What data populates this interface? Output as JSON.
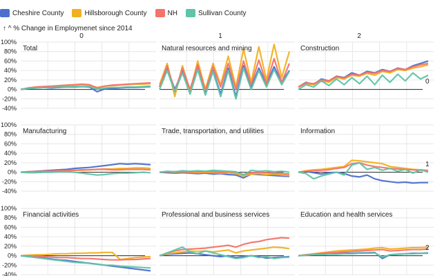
{
  "legend": [
    {
      "name": "Cheshire County",
      "color": "#4c6fcf"
    },
    {
      "name": "Hillsborough County",
      "color": "#f2b01e"
    },
    {
      "name": "NH",
      "color": "#f4736a"
    },
    {
      "name": "Sullivan County",
      "color": "#5fc4a8"
    }
  ],
  "ytitle": "↑ ^ % Change in Employmenet since 2014",
  "chart_data": {
    "type": "line",
    "facet": "small multiples, 3x3 grid",
    "column_headers": [
      "0",
      "1",
      "2"
    ],
    "row_labels_right": [
      "0",
      "1",
      "2"
    ],
    "y_ticks": [
      "100%",
      "80%",
      "60%",
      "40%",
      "20%",
      "0%",
      "-20%",
      "-40%"
    ],
    "y_tick_values": [
      100,
      80,
      60,
      40,
      20,
      0,
      -20,
      -40
    ],
    "ylim": [
      -40,
      100
    ],
    "grid": true,
    "x_unit": "month index",
    "panels": [
      {
        "title": "Total",
        "series": [
          {
            "name": "Cheshire County",
            "values": [
              0,
              2,
              3,
              4,
              3,
              4,
              5,
              5,
              6,
              5,
              -5,
              1,
              2,
              3,
              4,
              4,
              5,
              6
            ]
          },
          {
            "name": "Hillsborough County",
            "values": [
              0,
              3,
              5,
              6,
              6,
              7,
              8,
              9,
              10,
              9,
              4,
              7,
              8,
              9,
              10,
              11,
              11,
              12
            ]
          },
          {
            "name": "NH",
            "values": [
              0,
              3,
              5,
              6,
              7,
              8,
              9,
              10,
              11,
              10,
              3,
              7,
              9,
              10,
              11,
              12,
              13,
              14
            ]
          },
          {
            "name": "Sullivan County",
            "values": [
              0,
              2,
              3,
              4,
              4,
              5,
              5,
              6,
              6,
              6,
              0,
              3,
              4,
              4,
              5,
              5,
              6,
              7
            ]
          }
        ]
      },
      {
        "title": "Natural resources and mining",
        "series": [
          {
            "name": "Cheshire County",
            "values": [
              5,
              45,
              0,
              38,
              -5,
              50,
              -8,
              40,
              -10,
              45,
              -15,
              50,
              5,
              45,
              10,
              48,
              15,
              40
            ]
          },
          {
            "name": "Hillsborough County",
            "values": [
              10,
              55,
              -15,
              50,
              -5,
              60,
              0,
              55,
              10,
              70,
              5,
              85,
              15,
              90,
              20,
              95,
              25,
              80
            ]
          },
          {
            "name": "NH",
            "values": [
              5,
              50,
              -5,
              45,
              0,
              52,
              -3,
              48,
              5,
              55,
              0,
              60,
              10,
              62,
              12,
              65,
              15,
              55
            ]
          },
          {
            "name": "Sullivan County",
            "values": [
              0,
              40,
              -5,
              35,
              -10,
              42,
              -12,
              38,
              -15,
              40,
              -20,
              45,
              0,
              40,
              5,
              42,
              10,
              38
            ]
          }
        ]
      },
      {
        "title": "Construction",
        "series": [
          {
            "name": "Cheshire County",
            "values": [
              5,
              15,
              10,
              22,
              18,
              28,
              25,
              35,
              30,
              38,
              35,
              42,
              38,
              45,
              42,
              50,
              55,
              60
            ]
          },
          {
            "name": "Hillsborough County",
            "values": [
              5,
              12,
              10,
              18,
              15,
              25,
              22,
              30,
              28,
              34,
              30,
              38,
              35,
              42,
              40,
              45,
              48,
              52
            ]
          },
          {
            "name": "NH",
            "values": [
              5,
              14,
              12,
              20,
              18,
              27,
              24,
              32,
              30,
              36,
              34,
              40,
              38,
              44,
              42,
              48,
              52,
              55
            ]
          },
          {
            "name": "Sullivan County",
            "values": [
              0,
              10,
              5,
              18,
              8,
              22,
              10,
              25,
              12,
              28,
              10,
              30,
              15,
              32,
              18,
              35,
              22,
              30
            ]
          }
        ]
      },
      {
        "title": "Manufacturing",
        "series": [
          {
            "name": "Cheshire County",
            "values": [
              0,
              1,
              2,
              3,
              4,
              5,
              6,
              8,
              9,
              10,
              12,
              14,
              16,
              18,
              17,
              18,
              17,
              16
            ]
          },
          {
            "name": "Hillsborough County",
            "values": [
              0,
              1,
              1,
              2,
              2,
              3,
              3,
              4,
              4,
              5,
              6,
              7,
              7,
              8,
              8,
              9,
              9,
              8
            ]
          },
          {
            "name": "NH",
            "values": [
              0,
              1,
              1,
              2,
              2,
              3,
              3,
              4,
              5,
              5,
              6,
              6,
              5,
              5,
              6,
              6,
              6,
              5
            ]
          },
          {
            "name": "Sullivan County",
            "values": [
              0,
              -1,
              -1,
              0,
              0,
              1,
              1,
              0,
              -2,
              -4,
              -6,
              -5,
              -3,
              -2,
              -2,
              -1,
              0,
              -1
            ]
          }
        ]
      },
      {
        "title": "Trade, transportation, and utilities",
        "series": [
          {
            "name": "Cheshire County",
            "values": [
              0,
              -1,
              -2,
              -1,
              -2,
              -3,
              -2,
              -4,
              -3,
              -5,
              -6,
              -12,
              -4,
              -5,
              -6,
              -7,
              -8,
              -9
            ]
          },
          {
            "name": "Hillsborough County",
            "values": [
              0,
              1,
              0,
              1,
              0,
              -1,
              0,
              -1,
              -2,
              -1,
              -3,
              -8,
              -4,
              -3,
              -5,
              -4,
              -6,
              -7
            ]
          },
          {
            "name": "NH",
            "values": [
              0,
              1,
              1,
              2,
              1,
              1,
              2,
              1,
              0,
              1,
              0,
              -5,
              -1,
              0,
              -1,
              -2,
              -3,
              -4
            ]
          },
          {
            "name": "Sullivan County",
            "values": [
              0,
              2,
              1,
              3,
              2,
              3,
              2,
              4,
              3,
              2,
              1,
              -6,
              4,
              2,
              3,
              1,
              2,
              0
            ]
          }
        ]
      },
      {
        "title": "Information",
        "series": [
          {
            "name": "Cheshire County",
            "values": [
              0,
              2,
              -1,
              -4,
              -1,
              0,
              -3,
              -8,
              -10,
              -6,
              -14,
              -18,
              -20,
              -22,
              -21,
              -23,
              -22,
              -22
            ]
          },
          {
            "name": "Hillsborough County",
            "values": [
              0,
              3,
              5,
              6,
              8,
              10,
              12,
              25,
              24,
              22,
              20,
              18,
              12,
              10,
              8,
              6,
              5,
              4
            ]
          },
          {
            "name": "NH",
            "values": [
              0,
              2,
              3,
              4,
              5,
              8,
              10,
              18,
              20,
              15,
              12,
              10,
              8,
              7,
              6,
              5,
              4,
              3
            ]
          },
          {
            "name": "Sullivan County",
            "values": [
              0,
              -3,
              -14,
              -8,
              -4,
              0,
              -6,
              15,
              20,
              6,
              10,
              4,
              8,
              2,
              6,
              -2,
              5,
              0
            ]
          }
        ]
      },
      {
        "title": "Financial activities",
        "series": [
          {
            "name": "Cheshire County",
            "values": [
              0,
              -2,
              -3,
              -5,
              -7,
              -9,
              -10,
              -12,
              -14,
              -16,
              -18,
              -20,
              -22,
              -24,
              -26,
              -28,
              -30,
              -32
            ]
          },
          {
            "name": "Hillsborough County",
            "values": [
              0,
              1,
              2,
              2,
              3,
              4,
              4,
              5,
              5,
              6,
              6,
              7,
              7,
              -8,
              -6,
              -4,
              -3,
              -2
            ]
          },
          {
            "name": "NH",
            "values": [
              0,
              0,
              -1,
              -2,
              -3,
              -4,
              -4,
              -5,
              -6,
              -6,
              -7,
              -8,
              -9,
              -9,
              -8,
              -8,
              -7,
              -6
            ]
          },
          {
            "name": "Sullivan County",
            "values": [
              0,
              -2,
              -4,
              -6,
              -8,
              -10,
              -12,
              -14,
              -15,
              -16,
              -18,
              -20,
              -20,
              -22,
              -23,
              -24,
              -25,
              -26
            ]
          }
        ]
      },
      {
        "title": "Professional and business services",
        "series": [
          {
            "name": "Cheshire County",
            "values": [
              0,
              3,
              4,
              5,
              6,
              4,
              2,
              0,
              -2,
              0,
              -4,
              -2,
              0,
              -2,
              -5,
              -4,
              -3,
              -2
            ]
          },
          {
            "name": "Hillsborough County",
            "values": [
              0,
              4,
              6,
              8,
              10,
              9,
              10,
              8,
              10,
              12,
              6,
              10,
              12,
              14,
              16,
              18,
              17,
              15
            ]
          },
          {
            "name": "NH",
            "values": [
              0,
              6,
              10,
              13,
              14,
              15,
              16,
              18,
              20,
              22,
              18,
              24,
              28,
              30,
              34,
              36,
              38,
              37
            ]
          },
          {
            "name": "Sullivan County",
            "values": [
              0,
              6,
              12,
              18,
              8,
              4,
              10,
              6,
              2,
              -2,
              -6,
              -4,
              0,
              -4,
              -2,
              -6,
              -4,
              -3
            ]
          }
        ]
      },
      {
        "title": "Education and health services",
        "series": [
          {
            "name": "Cheshire County",
            "values": [
              0,
              1,
              2,
              3,
              4,
              4,
              5,
              5,
              6,
              6,
              7,
              -6,
              2,
              3,
              4,
              5,
              5,
              6
            ]
          },
          {
            "name": "Hillsborough County",
            "values": [
              0,
              2,
              4,
              6,
              8,
              10,
              11,
              12,
              13,
              14,
              16,
              17,
              14,
              15,
              16,
              17,
              17,
              18
            ]
          },
          {
            "name": "NH",
            "values": [
              0,
              2,
              3,
              5,
              6,
              7,
              8,
              9,
              10,
              11,
              12,
              13,
              10,
              11,
              12,
              13,
              13,
              14
            ]
          },
          {
            "name": "Sullivan County",
            "values": [
              0,
              1,
              2,
              2,
              3,
              3,
              4,
              4,
              5,
              5,
              6,
              -3,
              2,
              3,
              4,
              4,
              5,
              5
            ]
          }
        ]
      }
    ]
  }
}
